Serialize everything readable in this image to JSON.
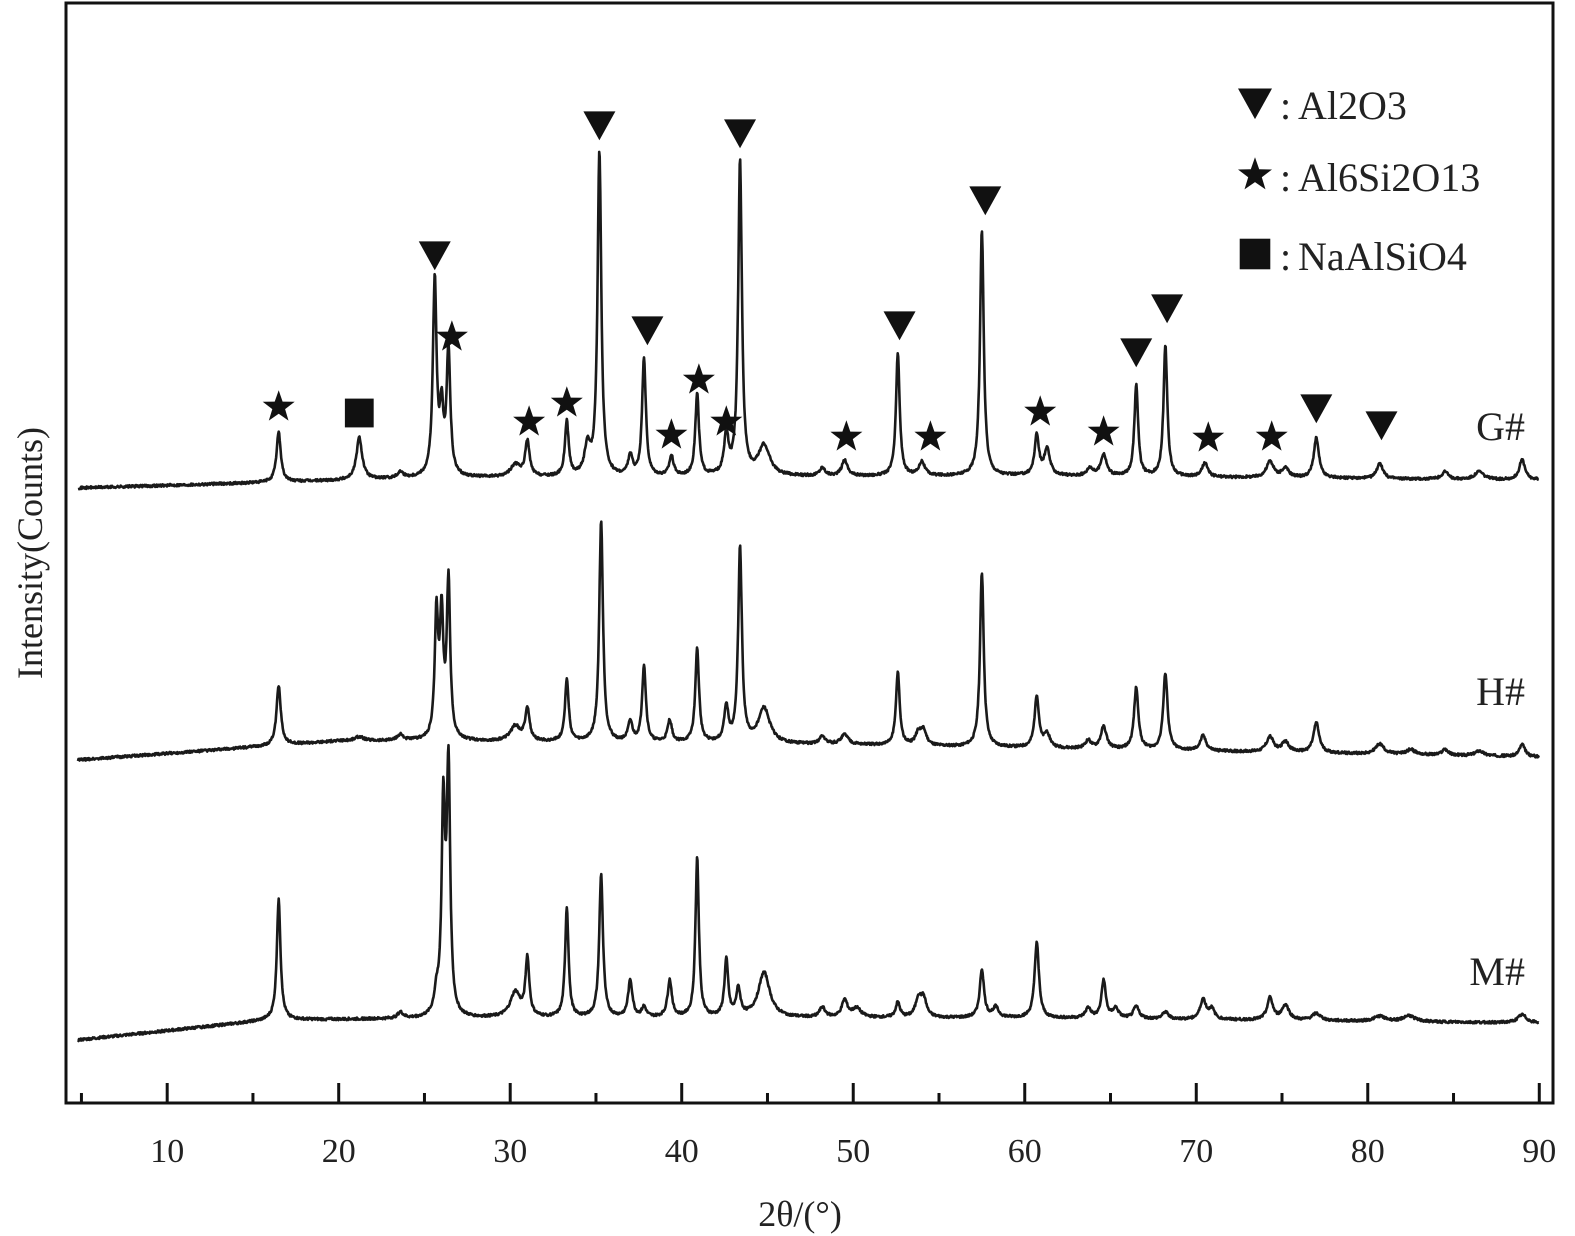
{
  "chart_data": {
    "type": "line",
    "title": "",
    "xlabel": "2θ/(°)",
    "ylabel": "Intensity(Counts)",
    "xlim": [
      4.1,
      90.8
    ],
    "ylim": [
      0,
      1100
    ],
    "x_ticks": [
      10,
      20,
      30,
      40,
      50,
      60,
      70,
      80,
      90
    ],
    "x_minor_ticks": [
      5,
      15,
      25,
      35,
      45,
      55,
      65,
      75,
      85
    ],
    "y_ticks_shown": false,
    "grid": false,
    "intensity_units": "arbitrary, stacked with offsets",
    "series": [
      {
        "name": "G#",
        "baseline": [
          [
            4.8,
            615
          ],
          [
            25,
            625
          ],
          [
            60,
            627
          ],
          [
            90,
            623
          ]
        ],
        "peaks": [
          [
            16.5,
            50,
            0.15
          ],
          [
            21.2,
            42,
            0.2
          ],
          [
            23.6,
            6,
            0.2
          ],
          [
            25.6,
            196,
            0.13
          ],
          [
            26.0,
            60,
            0.12
          ],
          [
            26.4,
            125,
            0.13
          ],
          [
            30.3,
            12,
            0.35
          ],
          [
            31.0,
            35,
            0.15
          ],
          [
            33.3,
            55,
            0.13
          ],
          [
            34.5,
            28,
            0.2
          ],
          [
            35.2,
            325,
            0.13
          ],
          [
            37.0,
            20,
            0.15
          ],
          [
            37.8,
            118,
            0.13
          ],
          [
            39.4,
            20,
            0.15
          ],
          [
            40.9,
            82,
            0.13
          ],
          [
            42.6,
            40,
            0.15
          ],
          [
            43.4,
            315,
            0.13
          ],
          [
            44.8,
            30,
            0.4
          ],
          [
            48.2,
            8,
            0.2
          ],
          [
            49.5,
            16,
            0.2
          ],
          [
            52.6,
            122,
            0.13
          ],
          [
            54.0,
            14,
            0.2
          ],
          [
            57.5,
            245,
            0.13
          ],
          [
            60.7,
            40,
            0.15
          ],
          [
            61.3,
            26,
            0.2
          ],
          [
            63.8,
            8,
            0.2
          ],
          [
            64.6,
            22,
            0.2
          ],
          [
            66.5,
            92,
            0.13
          ],
          [
            68.2,
            132,
            0.13
          ],
          [
            70.5,
            14,
            0.2
          ],
          [
            74.3,
            16,
            0.25
          ],
          [
            75.2,
            9,
            0.25
          ],
          [
            77.0,
            40,
            0.18
          ],
          [
            80.7,
            16,
            0.2
          ],
          [
            84.5,
            8,
            0.2
          ],
          [
            86.5,
            8,
            0.3
          ],
          [
            89.0,
            20,
            0.2
          ]
        ]
      },
      {
        "name": "H#",
        "baseline": [
          [
            4.8,
            343
          ],
          [
            20,
            362
          ],
          [
            25,
            362
          ],
          [
            50,
            358
          ],
          [
            90,
            346
          ]
        ],
        "peaks": [
          [
            16.5,
            60,
            0.15
          ],
          [
            21.2,
            4,
            0.3
          ],
          [
            23.6,
            6,
            0.2
          ],
          [
            25.7,
            122,
            0.12
          ],
          [
            26.0,
            118,
            0.12
          ],
          [
            26.4,
            157,
            0.12
          ],
          [
            30.3,
            15,
            0.35
          ],
          [
            31.0,
            32,
            0.15
          ],
          [
            33.3,
            62,
            0.13
          ],
          [
            35.3,
            222,
            0.13
          ],
          [
            37.0,
            20,
            0.15
          ],
          [
            37.8,
            77,
            0.13
          ],
          [
            39.3,
            22,
            0.15
          ],
          [
            40.9,
            94,
            0.13
          ],
          [
            42.6,
            34,
            0.15
          ],
          [
            43.4,
            195,
            0.13
          ],
          [
            44.8,
            35,
            0.4
          ],
          [
            48.2,
            8,
            0.2
          ],
          [
            49.5,
            10,
            0.25
          ],
          [
            52.6,
            73,
            0.13
          ],
          [
            53.8,
            12,
            0.2
          ],
          [
            54.1,
            14,
            0.2
          ],
          [
            57.5,
            175,
            0.13
          ],
          [
            60.7,
            52,
            0.15
          ],
          [
            61.3,
            14,
            0.2
          ],
          [
            63.7,
            8,
            0.2
          ],
          [
            64.6,
            22,
            0.2
          ],
          [
            66.5,
            62,
            0.15
          ],
          [
            68.2,
            77,
            0.15
          ],
          [
            70.4,
            15,
            0.2
          ],
          [
            74.3,
            15,
            0.25
          ],
          [
            75.2,
            10,
            0.25
          ],
          [
            77.0,
            30,
            0.2
          ],
          [
            80.7,
            10,
            0.3
          ],
          [
            82.5,
            5,
            0.3
          ],
          [
            84.5,
            6,
            0.2
          ],
          [
            86.5,
            5,
            0.3
          ],
          [
            89.0,
            12,
            0.2
          ]
        ]
      },
      {
        "name": "M#",
        "baseline": [
          [
            4.8,
            63
          ],
          [
            16,
            83
          ],
          [
            30,
            85
          ],
          [
            60,
            85
          ],
          [
            90,
            80
          ]
        ],
        "peaks": [
          [
            16.5,
            120,
            0.13
          ],
          [
            23.6,
            6,
            0.2
          ],
          [
            25.7,
            20,
            0.15
          ],
          [
            26.1,
            205,
            0.12
          ],
          [
            26.4,
            245,
            0.12
          ],
          [
            30.3,
            25,
            0.35
          ],
          [
            31.0,
            58,
            0.13
          ],
          [
            33.3,
            110,
            0.12
          ],
          [
            35.3,
            143,
            0.13
          ],
          [
            37.0,
            37,
            0.15
          ],
          [
            37.8,
            10,
            0.15
          ],
          [
            39.3,
            37,
            0.15
          ],
          [
            40.9,
            160,
            0.12
          ],
          [
            42.6,
            57,
            0.13
          ],
          [
            43.3,
            27,
            0.15
          ],
          [
            44.8,
            45,
            0.4
          ],
          [
            48.2,
            10,
            0.2
          ],
          [
            49.5,
            17,
            0.2
          ],
          [
            50.2,
            9,
            0.3
          ],
          [
            52.6,
            15,
            0.15
          ],
          [
            53.8,
            18,
            0.2
          ],
          [
            54.1,
            18,
            0.2
          ],
          [
            57.5,
            48,
            0.15
          ],
          [
            58.3,
            10,
            0.2
          ],
          [
            60.7,
            76,
            0.15
          ],
          [
            63.7,
            10,
            0.2
          ],
          [
            64.6,
            38,
            0.15
          ],
          [
            65.3,
            10,
            0.2
          ],
          [
            66.5,
            12,
            0.2
          ],
          [
            68.2,
            7,
            0.2
          ],
          [
            70.4,
            20,
            0.2
          ],
          [
            70.9,
            10,
            0.2
          ],
          [
            74.3,
            22,
            0.2
          ],
          [
            75.2,
            15,
            0.25
          ],
          [
            77.0,
            7,
            0.3
          ],
          [
            80.7,
            5,
            0.4
          ],
          [
            82.4,
            6,
            0.4
          ],
          [
            89.0,
            8,
            0.3
          ]
        ]
      }
    ],
    "phase_markers": {
      "triangle": [
        [
          25.6,
          848
        ],
        [
          35.2,
          978
        ],
        [
          38.0,
          773
        ],
        [
          43.4,
          970
        ],
        [
          52.7,
          778
        ],
        [
          57.7,
          903
        ],
        [
          66.5,
          751
        ],
        [
          68.3,
          795
        ],
        [
          77.0,
          695
        ],
        [
          80.8,
          678
        ]
      ],
      "star": [
        [
          16.5,
          696
        ],
        [
          26.6,
          766
        ],
        [
          31.1,
          681
        ],
        [
          33.3,
          700
        ],
        [
          39.4,
          668
        ],
        [
          41.0,
          723
        ],
        [
          42.6,
          681
        ],
        [
          49.6,
          666
        ],
        [
          54.5,
          666
        ],
        [
          60.9,
          691
        ],
        [
          64.6,
          671
        ],
        [
          70.7,
          665
        ],
        [
          74.4,
          666
        ]
      ],
      "square": [
        [
          21.2,
          690
        ]
      ]
    },
    "legend": {
      "placement": "top-right",
      "entries": [
        {
          "symbol": "triangle",
          "label": "Al2O3"
        },
        {
          "symbol": "star",
          "label": "Al6Si2O13"
        },
        {
          "symbol": "square",
          "label": "NaAlSiO4"
        }
      ],
      "separator": ":"
    }
  }
}
